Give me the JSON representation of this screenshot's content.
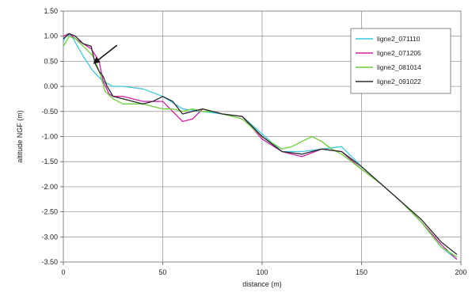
{
  "chart_data": {
    "type": "line",
    "xlabel": "distance (m)",
    "ylabel": "altitude NGF (m)",
    "xlim": [
      0,
      200
    ],
    "ylim": [
      -3.5,
      1.5
    ],
    "x_ticks": [
      "0",
      "50",
      "100",
      "150",
      "200"
    ],
    "y_ticks": [
      "1.50",
      "1.00",
      "0.50",
      "0.00",
      "-0.50",
      "-1.00",
      "-1.50",
      "-2.00",
      "-2.50",
      "-3.00",
      "-3.50"
    ],
    "grid": true,
    "legend_position": "top-right",
    "annotation": "arrow",
    "series": [
      {
        "name": "ligne2_071110",
        "color": "#3cc8e0",
        "x": [
          0,
          2,
          5,
          10,
          15,
          20,
          25,
          30,
          40,
          50,
          60,
          70,
          80,
          90,
          100,
          110,
          120,
          130,
          140,
          150,
          160,
          170,
          180,
          190,
          198
        ],
        "y": [
          0.9,
          1.05,
          0.95,
          0.6,
          0.3,
          0.1,
          0.0,
          0.0,
          -0.05,
          -0.2,
          -0.45,
          -0.5,
          -0.55,
          -0.6,
          -0.95,
          -1.3,
          -1.3,
          -1.25,
          -1.2,
          -1.6,
          -1.95,
          -2.3,
          -2.7,
          -3.2,
          -3.45
        ]
      },
      {
        "name": "ligne2_071205",
        "color": "#d020a8",
        "x": [
          0,
          3,
          6,
          10,
          14,
          18,
          20,
          23,
          25,
          30,
          35,
          40,
          45,
          50,
          55,
          60,
          65,
          70,
          75,
          80,
          90,
          100,
          110,
          120,
          130,
          140,
          150,
          160,
          170,
          180,
          190,
          198
        ],
        "y": [
          1.0,
          1.05,
          0.95,
          0.85,
          0.75,
          0.5,
          0.1,
          -0.15,
          -0.2,
          -0.2,
          -0.25,
          -0.3,
          -0.3,
          -0.3,
          -0.5,
          -0.7,
          -0.65,
          -0.45,
          -0.5,
          -0.55,
          -0.6,
          -1.05,
          -1.3,
          -1.4,
          -1.25,
          -1.3,
          -1.65,
          -1.95,
          -2.3,
          -2.7,
          -3.15,
          -3.45
        ]
      },
      {
        "name": "ligne2_081014",
        "color": "#6cd23a",
        "x": [
          0,
          3,
          6,
          10,
          15,
          18,
          21,
          25,
          30,
          35,
          40,
          45,
          50,
          55,
          60,
          65,
          70,
          75,
          80,
          90,
          100,
          110,
          115,
          120,
          125,
          130,
          135,
          140,
          150,
          160,
          170,
          180,
          190,
          198
        ],
        "y": [
          0.8,
          1.0,
          0.95,
          0.8,
          0.6,
          0.3,
          -0.1,
          -0.25,
          -0.35,
          -0.35,
          -0.35,
          -0.4,
          -0.45,
          -0.45,
          -0.5,
          -0.45,
          -0.5,
          -0.5,
          -0.55,
          -0.65,
          -1.0,
          -1.25,
          -1.2,
          -1.1,
          -1.0,
          -1.1,
          -1.25,
          -1.35,
          -1.65,
          -1.95,
          -2.3,
          -2.7,
          -3.2,
          -3.4
        ]
      },
      {
        "name": "ligne2_091022",
        "color": "#2a2a2a",
        "x": [
          0,
          3,
          6,
          10,
          14,
          16,
          18,
          20,
          22,
          25,
          30,
          35,
          40,
          45,
          50,
          55,
          60,
          65,
          70,
          75,
          80,
          90,
          100,
          110,
          120,
          130,
          140,
          150,
          160,
          170,
          180,
          190,
          198
        ],
        "y": [
          0.95,
          1.05,
          1.0,
          0.85,
          0.8,
          0.45,
          0.3,
          0.2,
          0.0,
          -0.2,
          -0.25,
          -0.3,
          -0.35,
          -0.3,
          -0.2,
          -0.3,
          -0.55,
          -0.5,
          -0.45,
          -0.5,
          -0.55,
          -0.6,
          -1.0,
          -1.3,
          -1.35,
          -1.25,
          -1.3,
          -1.6,
          -1.95,
          -2.3,
          -2.65,
          -3.1,
          -3.35
        ]
      }
    ]
  }
}
